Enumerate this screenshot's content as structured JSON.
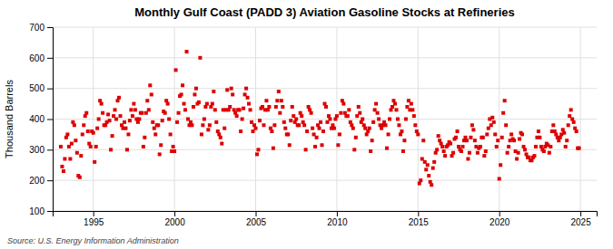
{
  "chart_data": {
    "type": "scatter",
    "title": "Monthly Gulf Coast (PADD 3) Aviation Gasoline Stocks at Refineries",
    "ylabel": "Thousand Barrels",
    "source": "Source: U.S. Energy Information Administration",
    "color": "#dd0000",
    "marker": "square",
    "grid": true,
    "xlim": [
      1992.5,
      2026.0
    ],
    "xticks": [
      1995,
      2000,
      2005,
      2010,
      2015,
      2020,
      2025
    ],
    "ylim": [
      100,
      700
    ],
    "yticks": [
      100,
      200,
      300,
      400,
      500,
      600,
      700
    ],
    "x": [
      1993.0,
      1993.083,
      1993.167,
      1993.25,
      1993.333,
      1993.417,
      1993.5,
      1993.583,
      1993.667,
      1993.75,
      1993.833,
      1993.917,
      1994.0,
      1994.083,
      1994.167,
      1994.25,
      1994.333,
      1994.417,
      1994.5,
      1994.583,
      1994.667,
      1994.75,
      1994.833,
      1994.917,
      1995.0,
      1995.083,
      1995.167,
      1995.25,
      1995.333,
      1995.417,
      1995.5,
      1995.583,
      1995.667,
      1995.75,
      1995.833,
      1995.917,
      1996.0,
      1996.083,
      1996.167,
      1996.25,
      1996.333,
      1996.417,
      1996.5,
      1996.583,
      1996.667,
      1996.75,
      1996.833,
      1996.917,
      1997.0,
      1997.083,
      1997.167,
      1997.25,
      1997.333,
      1997.417,
      1997.5,
      1997.583,
      1997.667,
      1997.75,
      1997.833,
      1997.917,
      1998.0,
      1998.083,
      1998.167,
      1998.25,
      1998.333,
      1998.417,
      1998.5,
      1998.583,
      1998.667,
      1998.75,
      1998.833,
      1998.917,
      1999.0,
      1999.083,
      1999.167,
      1999.25,
      1999.333,
      1999.417,
      1999.5,
      1999.583,
      1999.667,
      1999.75,
      1999.833,
      1999.917,
      2000.0,
      2000.083,
      2000.167,
      2000.25,
      2000.333,
      2000.417,
      2000.5,
      2000.583,
      2000.667,
      2000.75,
      2000.833,
      2000.917,
      2001.0,
      2001.083,
      2001.167,
      2001.25,
      2001.333,
      2001.417,
      2001.5,
      2001.583,
      2001.667,
      2001.75,
      2001.833,
      2001.917,
      2002.0,
      2002.083,
      2002.167,
      2002.25,
      2002.333,
      2002.417,
      2002.5,
      2002.583,
      2002.667,
      2002.75,
      2002.833,
      2002.917,
      2003.0,
      2003.083,
      2003.167,
      2003.25,
      2003.333,
      2003.417,
      2003.5,
      2003.583,
      2003.667,
      2003.75,
      2003.833,
      2003.917,
      2004.0,
      2004.083,
      2004.167,
      2004.25,
      2004.333,
      2004.417,
      2004.5,
      2004.583,
      2004.667,
      2004.75,
      2004.833,
      2004.917,
      2005.0,
      2005.083,
      2005.167,
      2005.25,
      2005.333,
      2005.417,
      2005.5,
      2005.583,
      2005.667,
      2005.75,
      2005.833,
      2005.917,
      2006.0,
      2006.083,
      2006.167,
      2006.25,
      2006.333,
      2006.417,
      2006.5,
      2006.583,
      2006.667,
      2006.75,
      2006.833,
      2006.917,
      2007.0,
      2007.083,
      2007.167,
      2007.25,
      2007.333,
      2007.417,
      2007.5,
      2007.583,
      2007.667,
      2007.75,
      2007.833,
      2007.917,
      2008.0,
      2008.083,
      2008.167,
      2008.25,
      2008.333,
      2008.417,
      2008.5,
      2008.583,
      2008.667,
      2008.75,
      2008.833,
      2008.917,
      2009.0,
      2009.083,
      2009.167,
      2009.25,
      2009.333,
      2009.417,
      2009.5,
      2009.583,
      2009.667,
      2009.75,
      2009.833,
      2009.917,
      2010.0,
      2010.083,
      2010.167,
      2010.25,
      2010.333,
      2010.417,
      2010.5,
      2010.583,
      2010.667,
      2010.75,
      2010.833,
      2010.917,
      2011.0,
      2011.083,
      2011.167,
      2011.25,
      2011.333,
      2011.417,
      2011.5,
      2011.583,
      2011.667,
      2011.75,
      2011.833,
      2011.917,
      2012.0,
      2012.083,
      2012.167,
      2012.25,
      2012.333,
      2012.417,
      2012.5,
      2012.583,
      2012.667,
      2012.75,
      2012.833,
      2012.917,
      2013.0,
      2013.083,
      2013.167,
      2013.25,
      2013.333,
      2013.417,
      2013.5,
      2013.583,
      2013.667,
      2013.75,
      2013.833,
      2013.917,
      2014.0,
      2014.083,
      2014.167,
      2014.25,
      2014.333,
      2014.417,
      2014.5,
      2014.583,
      2014.667,
      2014.75,
      2014.833,
      2014.917,
      2015.0,
      2015.083,
      2015.167,
      2015.25,
      2015.333,
      2015.417,
      2015.5,
      2015.583,
      2015.667,
      2015.75,
      2015.833,
      2015.917,
      2016.0,
      2016.083,
      2016.167,
      2016.25,
      2016.333,
      2016.417,
      2016.5,
      2016.583,
      2016.667,
      2016.75,
      2016.833,
      2016.917,
      2017.0,
      2017.083,
      2017.167,
      2017.25,
      2017.333,
      2017.417,
      2017.5,
      2017.583,
      2017.667,
      2017.75,
      2017.833,
      2017.917,
      2018.0,
      2018.083,
      2018.167,
      2018.25,
      2018.333,
      2018.417,
      2018.5,
      2018.583,
      2018.667,
      2018.75,
      2018.833,
      2018.917,
      2019.0,
      2019.083,
      2019.167,
      2019.25,
      2019.333,
      2019.417,
      2019.5,
      2019.583,
      2019.667,
      2019.75,
      2019.833,
      2019.917,
      2020.0,
      2020.083,
      2020.167,
      2020.25,
      2020.333,
      2020.417,
      2020.5,
      2020.583,
      2020.667,
      2020.75,
      2020.833,
      2020.917,
      2021.0,
      2021.083,
      2021.167,
      2021.25,
      2021.333,
      2021.417,
      2021.5,
      2021.583,
      2021.667,
      2021.75,
      2021.833,
      2021.917,
      2022.0,
      2022.083,
      2022.167,
      2022.25,
      2022.333,
      2022.417,
      2022.5,
      2022.583,
      2022.667,
      2022.75,
      2022.833,
      2022.917,
      2023.0,
      2023.083,
      2023.167,
      2023.25,
      2023.333,
      2023.417,
      2023.5,
      2023.583,
      2023.667,
      2023.75,
      2023.833,
      2023.917,
      2024.0,
      2024.083,
      2024.167,
      2024.25,
      2024.333,
      2024.417,
      2024.5,
      2024.583,
      2024.667,
      2024.75,
      2024.833,
      2024.917
    ],
    "values": [
      310,
      245,
      230,
      270,
      340,
      350,
      310,
      270,
      320,
      390,
      380,
      330,
      290,
      215,
      210,
      280,
      350,
      380,
      410,
      420,
      360,
      320,
      310,
      360,
      355,
      260,
      310,
      370,
      400,
      460,
      450,
      420,
      380,
      380,
      390,
      415,
      395,
      300,
      345,
      410,
      430,
      400,
      460,
      470,
      410,
      380,
      370,
      390,
      370,
      300,
      350,
      395,
      430,
      410,
      450,
      430,
      400,
      390,
      400,
      420,
      420,
      310,
      340,
      420,
      460,
      430,
      510,
      480,
      390,
      370,
      350,
      380,
      380,
      285,
      315,
      395,
      425,
      420,
      460,
      450,
      400,
      350,
      295,
      310,
      295,
      560,
      390,
      420,
      475,
      480,
      510,
      450,
      430,
      620,
      400,
      380,
      390,
      380,
      440,
      480,
      500,
      450,
      455,
      600,
      350,
      380,
      400,
      440,
      450,
      365,
      380,
      440,
      450,
      490,
      430,
      390,
      360,
      350,
      340,
      320,
      430,
      370,
      430,
      495,
      430,
      440,
      500,
      480,
      430,
      420,
      410,
      430,
      430,
      360,
      400,
      435,
      480,
      500,
      470,
      450,
      430,
      390,
      360,
      380,
      370,
      285,
      300,
      395,
      435,
      440,
      380,
      430,
      460,
      430,
      440,
      370,
      360,
      305,
      380,
      440,
      460,
      490,
      420,
      460,
      440,
      390,
      370,
      350,
      350,
      315,
      395,
      440,
      410,
      390,
      400,
      380,
      380,
      420,
      410,
      390,
      380,
      300,
      360,
      440,
      430,
      420,
      370,
      350,
      310,
      340,
      380,
      370,
      390,
      315,
      360,
      450,
      440,
      390,
      410,
      400,
      370,
      380,
      370,
      400,
      410,
      315,
      350,
      420,
      460,
      450,
      420,
      410,
      410,
      430,
      390,
      380,
      370,
      300,
      340,
      410,
      440,
      420,
      390,
      400,
      380,
      370,
      350,
      360,
      370,
      295,
      330,
      390,
      430,
      450,
      420,
      400,
      380,
      370,
      380,
      390,
      380,
      305,
      350,
      400,
      430,
      440,
      460,
      450,
      430,
      400,
      380,
      350,
      360,
      295,
      330,
      400,
      440,
      460,
      430,
      450,
      430,
      410,
      380,
      360,
      350,
      190,
      200,
      270,
      330,
      260,
      235,
      250,
      215,
      195,
      185,
      240,
      260,
      290,
      300,
      345,
      330,
      320,
      310,
      295,
      280,
      310,
      315,
      325,
      320,
      280,
      290,
      335,
      340,
      360,
      310,
      300,
      295,
      310,
      330,
      340,
      330,
      270,
      290,
      340,
      380,
      365,
      330,
      310,
      290,
      305,
      310,
      340,
      340,
      280,
      295,
      350,
      370,
      400,
      380,
      405,
      390,
      350,
      310,
      330,
      205,
      250,
      340,
      420,
      460,
      380,
      290,
      310,
      330,
      350,
      335,
      330,
      295,
      270,
      290,
      335,
      355,
      350,
      310,
      300,
      285,
      275,
      275,
      265,
      265,
      275,
      280,
      310,
      340,
      360,
      340,
      310,
      300,
      295,
      310,
      320,
      315,
      290,
      310,
      360,
      380,
      360,
      350,
      340,
      330,
      340,
      350,
      365,
      355,
      310,
      330,
      380,
      410,
      430,
      400,
      390,
      370,
      360,
      305,
      305
    ]
  }
}
